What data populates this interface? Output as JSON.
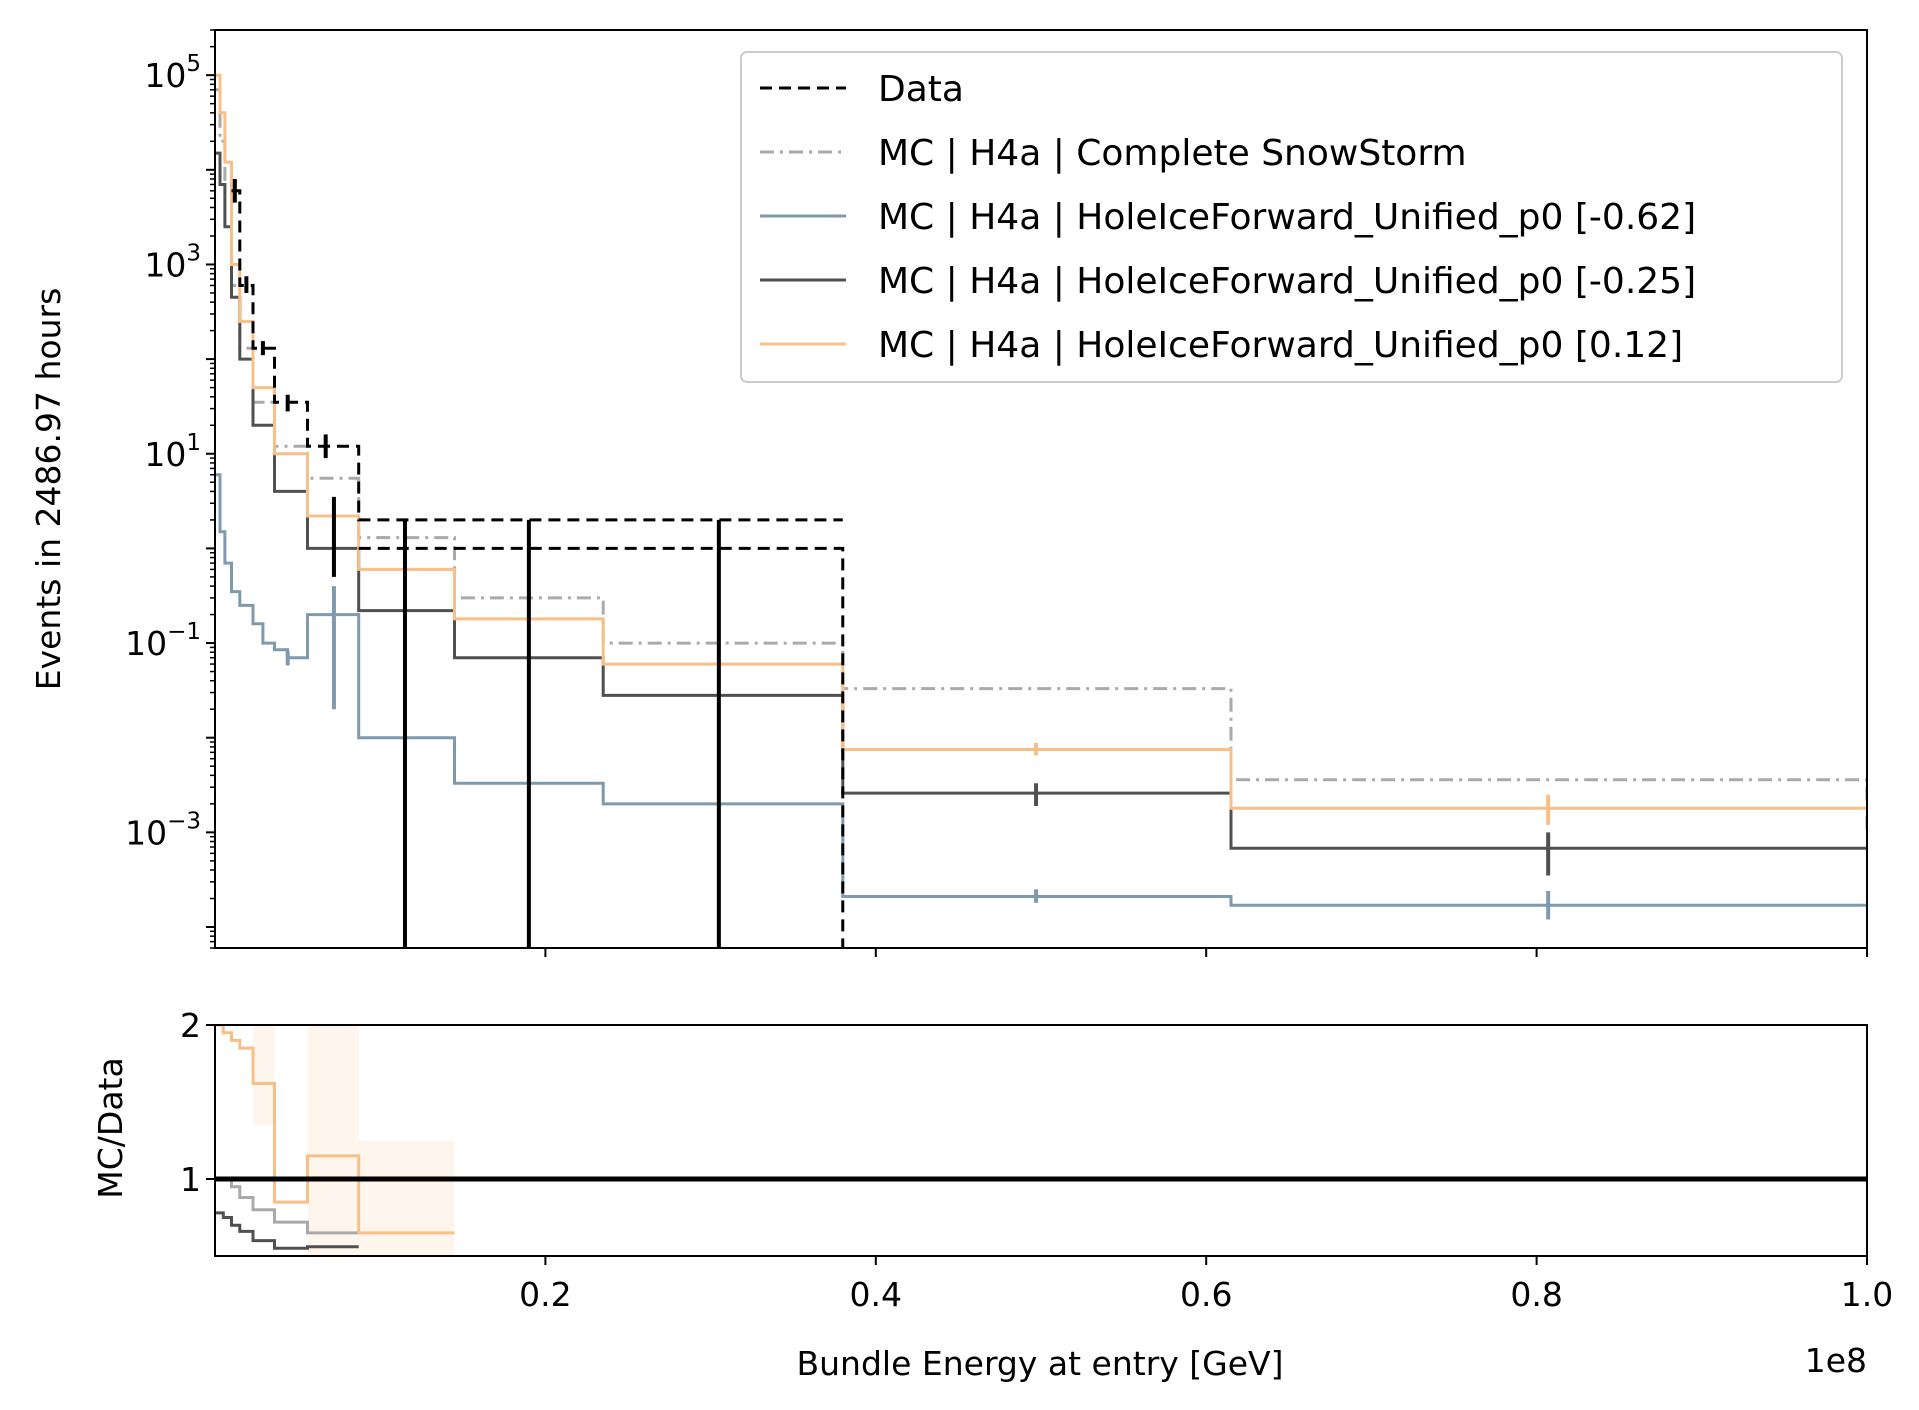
{
  "chart_data": [
    {
      "type": "line",
      "panel": "main",
      "ylabel": "Events in 2486.97 hours",
      "yscale": "log",
      "xlim": [
        0,
        100000000.0
      ],
      "ylim": [
        6e-05,
        300000
      ],
      "yticks": [
        {
          "value": 100000,
          "base": "10",
          "exp": "5"
        },
        {
          "value": 1000,
          "base": "10",
          "exp": "3"
        },
        {
          "value": 10,
          "base": "10",
          "exp": "1"
        },
        {
          "value": 0.1,
          "base": "10",
          "exp": "−1"
        },
        {
          "value": 0.001,
          "base": "10",
          "exp": "−3"
        }
      ],
      "legend_position": "top-right",
      "series": [
        {
          "name": "Data",
          "color": "#000000",
          "style": "dashed",
          "edges": [
            1000000.0,
            1500000.0,
            2300000.0,
            3600000.0,
            5600000.0,
            8700000.0,
            38000000.0
          ],
          "values": [
            6000,
            600,
            130,
            35,
            12,
            2
          ],
          "tail": {
            "from": 8700000.0,
            "to": 38000000.0,
            "value": 1.0
          },
          "errorbars": [
            {
              "x": 1200000.0,
              "low": 4500,
              "high": 8000
            },
            {
              "x": 1900000.0,
              "low": 500,
              "high": 750
            },
            {
              "x": 2900000.0,
              "low": 110,
              "high": 155
            },
            {
              "x": 4400000.0,
              "low": 28,
              "high": 42
            },
            {
              "x": 6700000.0,
              "low": 9,
              "high": 16
            },
            {
              "x": 7200000.0,
              "low": 0.5,
              "high": 3.5
            },
            {
              "x": 11500000.0,
              "low": 6e-05,
              "high": 2.0
            },
            {
              "x": 19000000.0,
              "low": 6e-05,
              "high": 2.0
            },
            {
              "x": 30500000.0,
              "low": 6e-05,
              "high": 2.0
            }
          ]
        },
        {
          "name": "MC | H4a | Complete SnowStorm",
          "color": "#aaaaaa",
          "style": "dashdot",
          "edges": [
            0,
            300000.0,
            600000.0,
            1000000.0,
            1500000.0,
            2300000.0,
            3600000.0,
            5600000.0,
            8700000.0,
            14500000.0,
            23500000.0,
            38000000.0,
            61500000.0,
            100000000.0
          ],
          "values": [
            70000,
            20000,
            6000,
            600,
            130,
            35,
            12,
            5.5,
            1.3,
            0.3,
            0.1,
            0.033,
            0.0036,
            0.00095
          ]
        },
        {
          "name": "MC | H4a | HoleIceForward_Unified_p0 [-0.62]",
          "color": "#7f9aad",
          "style": "solid",
          "edges": [
            0,
            300000.0,
            600000.0,
            1000000.0,
            1500000.0,
            2300000.0,
            2900000.0,
            3600000.0,
            4400000.0,
            5600000.0,
            8700000.0,
            14500000.0,
            23500000.0,
            38000000.0,
            61500000.0,
            100000000.0
          ],
          "values": [
            6,
            1.5,
            0.7,
            0.35,
            0.25,
            0.16,
            0.1,
            0.085,
            0.07,
            0.2,
            0.01,
            0.0033,
            0.002,
            0.00021,
            0.00017
          ],
          "errorbars": [
            {
              "x": 4400000.0,
              "low": 0.058,
              "high": 0.082
            },
            {
              "x": 7200000.0,
              "low": 0.02,
              "high": 0.4
            },
            {
              "x": 49700000.0,
              "low": 0.00018,
              "high": 0.00025
            },
            {
              "x": 80700000.0,
              "low": 0.00012,
              "high": 0.00024
            }
          ]
        },
        {
          "name": "MC | H4a | HoleIceForward_Unified_p0 [-0.25]",
          "color": "#505050",
          "style": "solid",
          "edges": [
            0,
            300000.0,
            600000.0,
            1000000.0,
            1500000.0,
            2300000.0,
            3600000.0,
            5600000.0,
            8700000.0,
            14500000.0,
            23500000.0,
            38000000.0,
            61500000.0,
            100000000.0
          ],
          "values": [
            15000,
            7000,
            2500,
            450,
            100,
            20,
            4,
            1.0,
            0.22,
            0.07,
            0.028,
            0.0026,
            0.00068
          ],
          "errorbars": [
            {
              "x": 49700000.0,
              "low": 0.0019,
              "high": 0.0033
            },
            {
              "x": 80700000.0,
              "low": 0.00035,
              "high": 0.001
            }
          ]
        },
        {
          "name": "MC | H4a | HoleIceForward_Unified_p0 [0.12]",
          "color": "#f9bf88",
          "style": "solid",
          "edges": [
            0,
            300000.0,
            600000.0,
            1000000.0,
            1500000.0,
            2300000.0,
            3600000.0,
            5600000.0,
            8700000.0,
            14500000.0,
            23500000.0,
            38000000.0,
            61500000.0,
            100000000.0
          ],
          "values": [
            100000,
            40000,
            12000,
            1000,
            250,
            50,
            10,
            2.2,
            0.6,
            0.18,
            0.06,
            0.0075,
            0.0018
          ],
          "errorbars": [
            {
              "x": 49700000.0,
              "low": 0.0065,
              "high": 0.0088
            },
            {
              "x": 80700000.0,
              "low": 0.0012,
              "high": 0.0025
            }
          ]
        }
      ]
    },
    {
      "type": "line",
      "panel": "ratio",
      "ylabel": "MC/Data",
      "xlabel": "Bundle Energy at entry [GeV]",
      "x_offset_label": "1e8",
      "xlim": [
        0,
        100000000.0
      ],
      "ylim": [
        0.5,
        2.0
      ],
      "xticks": [
        {
          "value": 20000000.0,
          "label": "0.2"
        },
        {
          "value": 40000000.0,
          "label": "0.4"
        },
        {
          "value": 60000000.0,
          "label": "0.6"
        },
        {
          "value": 80000000.0,
          "label": "0.8"
        },
        {
          "value": 100000000.0,
          "label": "1.0"
        }
      ],
      "yticks": [
        {
          "value": 1,
          "label": "1"
        },
        {
          "value": 2,
          "label": "2"
        }
      ],
      "reference_line": 1.0,
      "series": [
        {
          "ref": "MC | H4a | Complete SnowStorm",
          "color": "#aaaaaa",
          "edges": [
            0,
            1000000.0,
            1500000.0,
            2300000.0,
            3600000.0,
            5600000.0,
            8700000.0
          ],
          "values": [
            1.0,
            0.95,
            0.88,
            0.8,
            0.72,
            0.65
          ]
        },
        {
          "ref": "MC | H4a | HoleIceForward_Unified_p0 [-0.25]",
          "color": "#505050",
          "edges": [
            0,
            500000.0,
            1000000.0,
            1500000.0,
            2300000.0,
            3600000.0,
            5600000.0,
            8700000.0
          ],
          "values": [
            0.78,
            0.75,
            0.7,
            0.66,
            0.6,
            0.55,
            0.56
          ]
        },
        {
          "ref": "MC | H4a | HoleIceForward_Unified_p0 [0.12]",
          "color": "#f9bf88",
          "edges": [
            0,
            500000.0,
            1000000.0,
            1500000.0,
            2300000.0,
            3600000.0,
            5600000.0,
            8700000.0,
            14500000.0
          ],
          "values": [
            2.0,
            1.95,
            1.9,
            1.85,
            1.62,
            0.85,
            1.15,
            0.65
          ],
          "bands": [
            {
              "from": 2300000.0,
              "to": 3600000.0,
              "low": 1.35,
              "high": 2.0
            },
            {
              "from": 5600000.0,
              "to": 8700000.0,
              "low": 0.5,
              "high": 2.0
            },
            {
              "from": 8700000.0,
              "to": 14500000.0,
              "low": 0.5,
              "high": 1.25
            }
          ]
        }
      ]
    }
  ]
}
